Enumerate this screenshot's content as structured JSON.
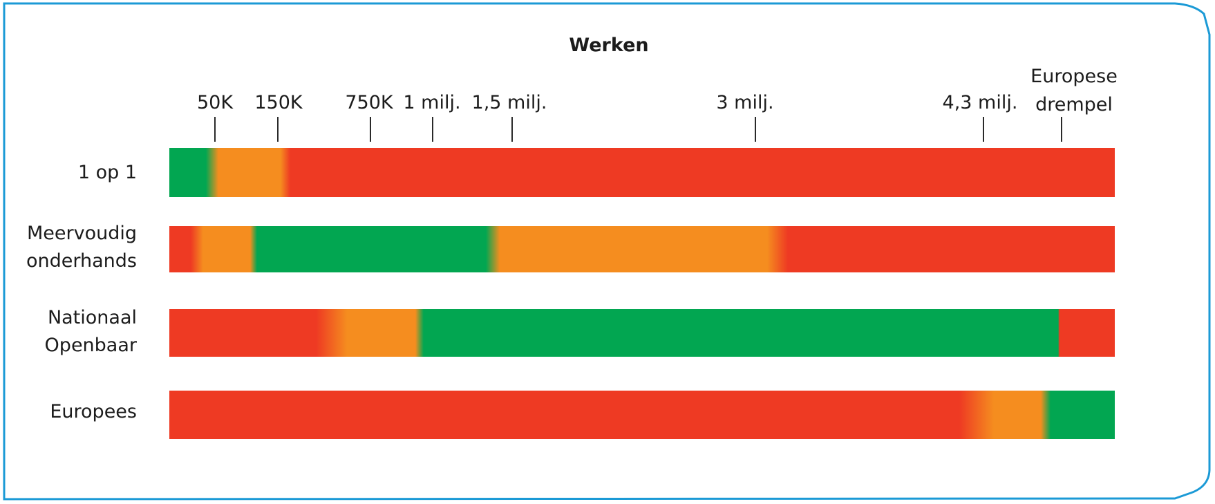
{
  "chart_data": {
    "type": "heatmap",
    "title": "Werken",
    "scale_ticks": [
      {
        "label": "50K"
      },
      {
        "label": "150K"
      },
      {
        "label": "750K"
      },
      {
        "label": "1 milj."
      },
      {
        "label": "1,5 milj."
      },
      {
        "label": "3 milj."
      },
      {
        "label": "4,3 milj."
      },
      {
        "label": "Europese",
        "label_line2": "drempel"
      }
    ],
    "colors": {
      "green": "#02a651",
      "orange": "#f58d1f",
      "red": "#ee3a23"
    },
    "rows": [
      {
        "label": "1 op 1",
        "segments": [
          {
            "from": "0",
            "to": "50K",
            "color": "green"
          },
          {
            "from": "50K",
            "to": "150K",
            "color": "orange"
          },
          {
            "from": "150K",
            "to": "Europese drempel",
            "color": "red"
          }
        ]
      },
      {
        "label": "Meervoudig",
        "label_line2": "onderhands",
        "segments": [
          {
            "from": "0",
            "to": "50K",
            "color": "red"
          },
          {
            "from": "50K",
            "to": "150K",
            "color": "orange"
          },
          {
            "from": "150K",
            "to": "1,5 milj.",
            "color": "green"
          },
          {
            "from": "1,5 milj.",
            "to": "3 milj.",
            "color": "orange"
          },
          {
            "from": "3 milj.",
            "to": "Europese drempel",
            "color": "red"
          }
        ]
      },
      {
        "label": "Nationaal",
        "label_line2": "Openbaar",
        "segments": [
          {
            "from": "0",
            "to": "750K",
            "color": "red"
          },
          {
            "from": "750K",
            "to": "1 milj.",
            "color": "orange"
          },
          {
            "from": "1 milj.",
            "to": "Europese drempel",
            "color": "green"
          },
          {
            "from": "Europese drempel",
            "to": "",
            "color": "red"
          }
        ]
      },
      {
        "label": "Europees",
        "segments": [
          {
            "from": "0",
            "to": "4,3 milj.",
            "color": "red"
          },
          {
            "from": "4,3 milj.",
            "to": "Europese drempel",
            "color": "orange"
          },
          {
            "from": "Europese drempel",
            "to": "",
            "color": "green"
          }
        ]
      }
    ]
  }
}
